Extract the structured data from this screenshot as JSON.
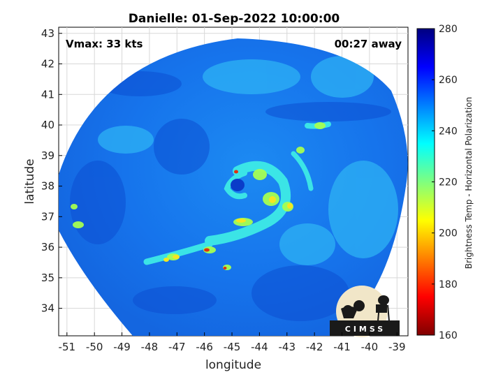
{
  "title": "Danielle: 01-Sep-2022 10:00:00",
  "annotations": {
    "vmax": "Vmax: 33 kts",
    "offset": "00:27 away"
  },
  "axes": {
    "xlabel": "longitude",
    "ylabel": "latitude",
    "xticks": [
      "-51",
      "-50",
      "-49",
      "-48",
      "-47",
      "-46",
      "-45",
      "-44",
      "-43",
      "-42",
      "-41",
      "-40",
      "-39"
    ],
    "yticks": [
      "34",
      "35",
      "36",
      "37",
      "38",
      "39",
      "40",
      "41",
      "42",
      "43"
    ],
    "xlim": [
      -51.3,
      -38.6
    ],
    "ylim": [
      33.1,
      43.2
    ],
    "grid": true
  },
  "colorbar": {
    "label": "Brightness Temp - Horizontal Polarization",
    "ticks": [
      "160",
      "180",
      "200",
      "220",
      "240",
      "260",
      "280"
    ],
    "range": [
      160,
      280
    ],
    "colormap": "jet"
  },
  "logo": {
    "text": "CIMSS"
  },
  "colors": {
    "background": "#0a3fd0",
    "swath": "#1a78f0",
    "cold": "#ffff00",
    "warm": "#00008b"
  }
}
